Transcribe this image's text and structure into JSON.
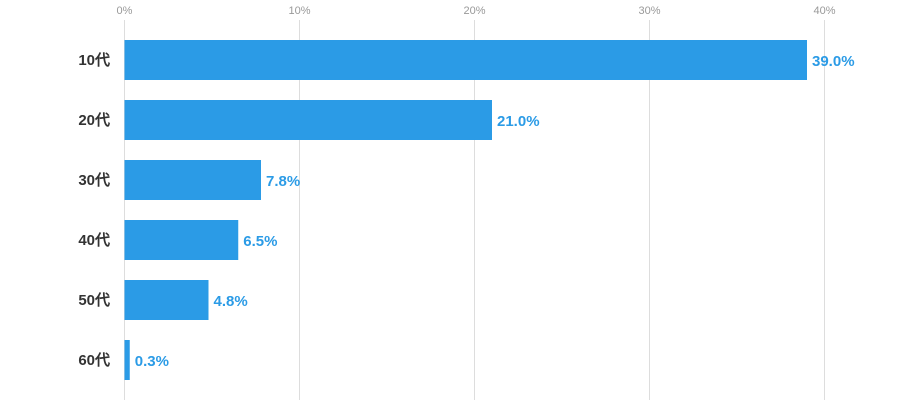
{
  "chart_data": {
    "type": "bar",
    "orientation": "horizontal",
    "categories": [
      "10代",
      "20代",
      "30代",
      "40代",
      "50代",
      "60代"
    ],
    "values": [
      39.0,
      21.0,
      7.8,
      6.5,
      4.8,
      0.3
    ],
    "value_labels": [
      "39.0%",
      "21.0%",
      "7.8%",
      "6.5%",
      "4.8%",
      "0.3%"
    ],
    "x_ticks": [
      0,
      10,
      20,
      30,
      40
    ],
    "x_tick_labels": [
      "0%",
      "10%",
      "20%",
      "30%",
      "40%"
    ],
    "xlim": [
      0,
      44
    ],
    "grid": true,
    "title": "",
    "xlabel": "",
    "ylabel": "",
    "colors": {
      "bar": "#2b9be6",
      "value_label": "#2b9be6",
      "grid": "#dddddd"
    }
  }
}
